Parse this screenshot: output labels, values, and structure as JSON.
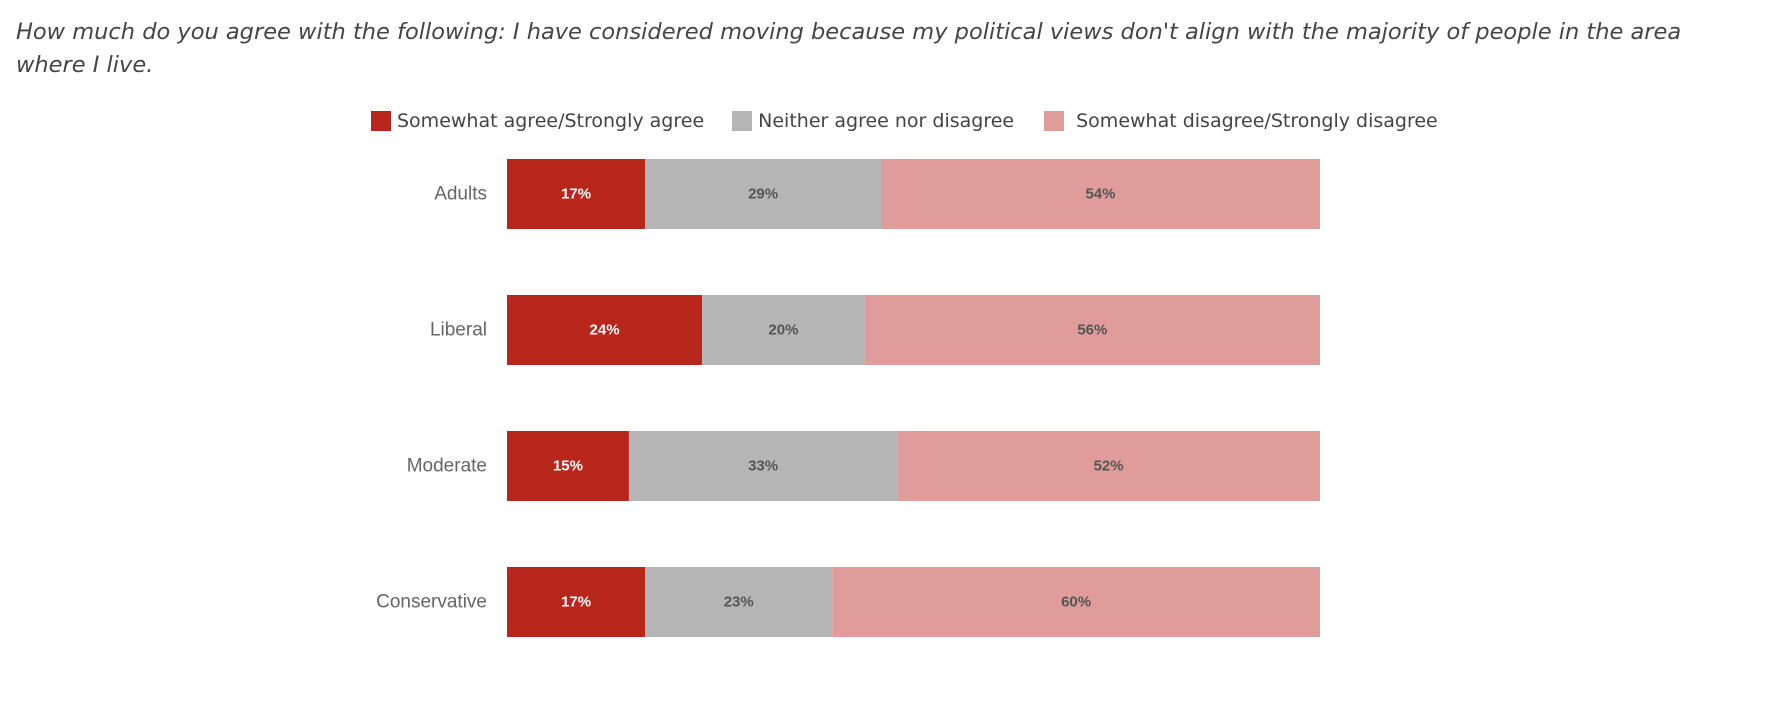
{
  "chart_data": {
    "type": "bar",
    "orientation": "horizontal",
    "stacked": true,
    "title": "How much do you agree with the following: I have considered moving because my political views don't align with the majority of people in the area where I live.",
    "categories": [
      "Adults",
      "Liberal",
      "Moderate",
      "Conservative"
    ],
    "series": [
      {
        "name": "Somewhat agree/Strongly agree",
        "values": [
          17,
          24,
          15,
          17
        ],
        "labels": [
          "17%",
          "24%",
          "15%",
          "17%"
        ]
      },
      {
        "name": "Neither agree nor disagree",
        "values": [
          29,
          20,
          33,
          23
        ],
        "labels": [
          "29%",
          "20%",
          "33%",
          "23%"
        ]
      },
      {
        "name": "Somewhat disagree/Strongly disagree",
        "values": [
          54,
          56,
          52,
          60
        ],
        "labels": [
          "54%",
          "56%",
          "52%",
          "60%"
        ]
      }
    ],
    "colors": [
      "#b9261c",
      "#b5b5b5",
      "#df9c9a"
    ],
    "label_colors": [
      "#ffffff",
      "#555555",
      "#555555"
    ],
    "xlim": [
      0,
      100
    ],
    "legend_position": "top",
    "grid": false
  }
}
